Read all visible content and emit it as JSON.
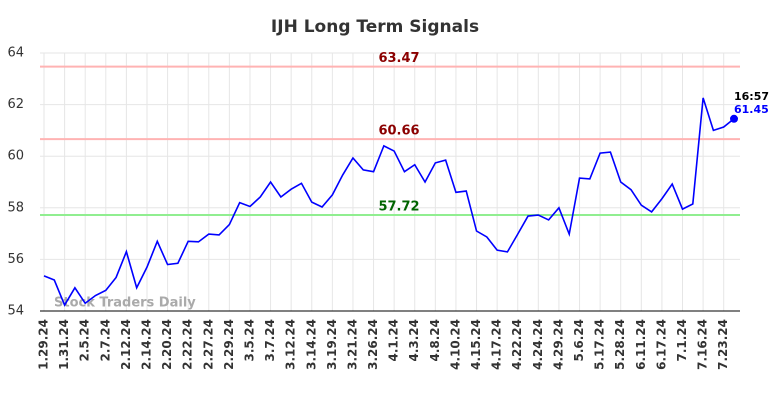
{
  "chart_data": {
    "type": "line",
    "title": "IJH Long Term Signals",
    "categories": [
      "1.29.24",
      null,
      "1.31.24",
      null,
      "2.5.24",
      null,
      "2.7.24",
      null,
      "2.12.24",
      null,
      "2.14.24",
      null,
      "2.20.24",
      null,
      "2.22.24",
      null,
      "2.27.24",
      null,
      "2.29.24",
      null,
      "3.5.24",
      null,
      "3.7.24",
      null,
      "3.12.24",
      null,
      "3.14.24",
      null,
      "3.19.24",
      null,
      "3.21.24",
      null,
      "3.26.24",
      null,
      "4.1.24",
      null,
      "4.3.24",
      null,
      "4.8.24",
      null,
      "4.10.24",
      null,
      "4.15.24",
      null,
      "4.17.24",
      null,
      "4.22.24",
      null,
      "4.24.24",
      null,
      "4.29.24",
      null,
      "5.6.24",
      null,
      "5.17.24",
      null,
      "5.28.24",
      null,
      "6.11.24",
      null,
      "6.17.24",
      null,
      "7.1.24",
      null,
      "7.16.24",
      null,
      "7.23.24",
      null
    ],
    "series": [
      {
        "color": "#0000ff",
        "values": [
          55.36,
          55.2,
          54.23,
          54.9,
          54.3,
          54.6,
          54.8,
          55.3,
          56.3,
          54.9,
          55.7,
          56.7,
          55.8,
          55.85,
          56.7,
          56.68,
          56.98,
          56.95,
          57.35,
          58.2,
          58.05,
          58.42,
          59.0,
          58.42,
          58.72,
          58.95,
          58.22,
          58.03,
          58.5,
          59.27,
          59.93,
          59.47,
          59.4,
          60.4,
          60.2,
          59.4,
          59.67,
          59.0,
          59.74,
          59.85,
          58.6,
          58.65,
          57.1,
          56.87,
          56.36,
          56.29,
          56.98,
          57.68,
          57.72,
          57.53,
          58.0,
          56.98,
          59.15,
          59.12,
          60.12,
          60.16,
          59.0,
          58.7,
          58.1,
          57.84,
          58.35,
          58.92,
          57.95,
          58.15,
          62.26,
          61.0,
          61.13,
          61.45
        ]
      }
    ],
    "ylim": [
      54,
      64
    ],
    "yticks": [
      54,
      56,
      58,
      60,
      62,
      64
    ],
    "grid": true,
    "hlines": [
      {
        "value": 63.47,
        "color": "#ffb3b3",
        "label_color": "#8b0000"
      },
      {
        "value": 60.66,
        "color": "#ffb3b3",
        "label_color": "#8b0000"
      },
      {
        "value": 57.72,
        "color": "#90ee90",
        "label_color": "#006400"
      }
    ],
    "last_time": "16:57",
    "watermark": "Stock Traders Daily"
  }
}
